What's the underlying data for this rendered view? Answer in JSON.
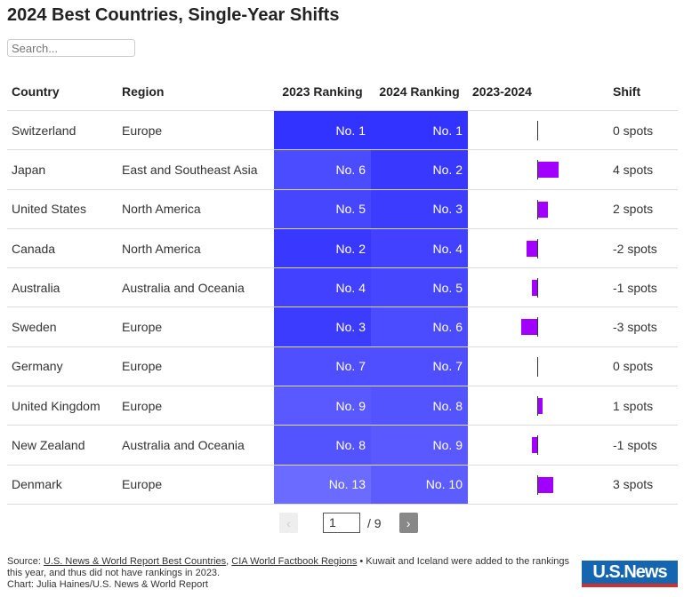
{
  "title": "2024 Best Countries, Single-Year Shifts",
  "search": {
    "placeholder": "Search..."
  },
  "colors": {
    "rank_base": "#3333ff",
    "bar": "#a100ff"
  },
  "chart_data": {
    "type": "table",
    "columns": [
      "Country",
      "Region",
      "2023 Ranking",
      "2024 Ranking",
      "2023-2024",
      "Shift"
    ],
    "rows": [
      {
        "country": "Switzerland",
        "region": "Europe",
        "r2023": "No. 1",
        "r2024": "No. 1",
        "shift": 0,
        "shift_label": "0 spots"
      },
      {
        "country": "Japan",
        "region": "East and Southeast Asia",
        "r2023": "No. 6",
        "r2024": "No. 2",
        "shift": 4,
        "shift_label": "4 spots"
      },
      {
        "country": "United States",
        "region": "North America",
        "r2023": "No. 5",
        "r2024": "No. 3",
        "shift": 2,
        "shift_label": "2 spots"
      },
      {
        "country": "Canada",
        "region": "North America",
        "r2023": "No. 2",
        "r2024": "No. 4",
        "shift": -2,
        "shift_label": "-2 spots"
      },
      {
        "country": "Australia",
        "region": "Australia and Oceania",
        "r2023": "No. 4",
        "r2024": "No. 5",
        "shift": -1,
        "shift_label": "-1 spots"
      },
      {
        "country": "Sweden",
        "region": "Europe",
        "r2023": "No. 3",
        "r2024": "No. 6",
        "shift": -3,
        "shift_label": "-3 spots"
      },
      {
        "country": "Germany",
        "region": "Europe",
        "r2023": "No. 7",
        "r2024": "No. 7",
        "shift": 0,
        "shift_label": "0 spots"
      },
      {
        "country": "United Kingdom",
        "region": "Europe",
        "r2023": "No. 9",
        "r2024": "No. 8",
        "shift": 1,
        "shift_label": "1 spots"
      },
      {
        "country": "New Zealand",
        "region": "Australia and Oceania",
        "r2023": "No. 8",
        "r2024": "No. 9",
        "shift": -1,
        "shift_label": "-1 spots"
      },
      {
        "country": "Denmark",
        "region": "Europe",
        "r2023": "No. 13",
        "r2024": "No. 10",
        "shift": 3,
        "shift_label": "3 spots"
      }
    ]
  },
  "pager": {
    "prev": "‹",
    "page": "1",
    "total": "/ 9",
    "next": "›"
  },
  "footer": {
    "source_prefix": "Source: ",
    "link1": "U.S. News & World Report Best Countries",
    "sep": ", ",
    "link2": "CIA World Factbook Regions",
    "note": " • Kuwait and Iceland were added to the rankings this year, and thus did not have rankings in 2023.",
    "credit": "Chart: Julia Haines/U.S. News & World Report"
  },
  "logo": "USNews"
}
